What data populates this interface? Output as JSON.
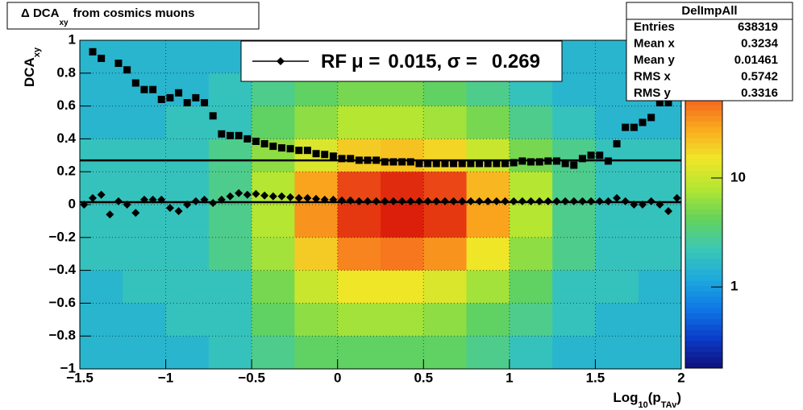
{
  "chart_data": {
    "type": "heatmap",
    "title": {
      "main": "Δ DCA",
      "sub": "xy",
      "rest": "from cosmics muons"
    },
    "x_label": {
      "main": "Log",
      "sub1": "10",
      "mid": "(p",
      "sub2": "TAv",
      "end": ")"
    },
    "y_label": {
      "main": "DCA",
      "sub": "xy"
    },
    "xlim": [
      -1.5,
      2
    ],
    "ylim": [
      -1,
      1
    ],
    "xticks": [
      {
        "value": -1.5,
        "label": "−1.5"
      },
      {
        "value": -1,
        "label": "−1"
      },
      {
        "value": -0.5,
        "label": "−0.5"
      },
      0,
      0.5,
      1,
      1.5,
      2
    ],
    "yticks": [
      {
        "value": -1,
        "label": "−1"
      },
      {
        "value": -0.8,
        "label": "−0.8"
      },
      {
        "value": -0.6,
        "label": "−0.6"
      },
      {
        "value": -0.4,
        "label": "−0.4"
      },
      {
        "value": -0.2,
        "label": "−0.2"
      },
      0,
      0.2,
      0.4,
      0.6,
      0.8,
      1
    ],
    "grid": true,
    "zlim": [
      0.18,
      190
    ],
    "zlog": true,
    "zticks": [
      1,
      10
    ],
    "palette": [
      "#10107a",
      "#0a3cc8",
      "#0f78e6",
      "#1eaadc",
      "#3cc8b4",
      "#64d25a",
      "#b4e632",
      "#f0e628",
      "#faaa1e",
      "#f5641e",
      "#dc1e0a",
      "#8c0a0a"
    ],
    "xbins": [
      -1.5,
      -1.25,
      -1,
      -0.75,
      -0.5,
      -0.25,
      0,
      0.25,
      0.5,
      0.75,
      1,
      1.25,
      1.5,
      1.75,
      2
    ],
    "ybins": [
      1,
      0.8,
      0.6,
      0.4,
      0.2,
      0,
      -0.2,
      -0.4,
      -0.6,
      -0.8,
      -1
    ],
    "z": [
      [
        1.5,
        1.5,
        1.5,
        1.5,
        2,
        3,
        3,
        3,
        3,
        2,
        2,
        1.5,
        1.5,
        1.5
      ],
      [
        1.5,
        1.5,
        1.5,
        2,
        3,
        4,
        5,
        5,
        4,
        3,
        2,
        1.5,
        1.5,
        1.5
      ],
      [
        1.5,
        1.5,
        2,
        2,
        4,
        6,
        8,
        8,
        7,
        5,
        3,
        2,
        1.5,
        1.5
      ],
      [
        2,
        2,
        2,
        3,
        6,
        12,
        20,
        22,
        18,
        10,
        5,
        3,
        2,
        2
      ],
      [
        2,
        2,
        2,
        3,
        8,
        30,
        70,
        90,
        70,
        25,
        8,
        3,
        2,
        2
      ],
      [
        2,
        2,
        2,
        3,
        8,
        35,
        80,
        100,
        80,
        30,
        8,
        3,
        2,
        2
      ],
      [
        2,
        2,
        2,
        3,
        7,
        20,
        40,
        45,
        35,
        15,
        6,
        3,
        2,
        2
      ],
      [
        1.5,
        2,
        2,
        2,
        5,
        10,
        15,
        15,
        12,
        7,
        4,
        2,
        2,
        1.5
      ],
      [
        1.5,
        1.5,
        2,
        2,
        4,
        6,
        7,
        7,
        6,
        4,
        3,
        2,
        1.5,
        1.5
      ],
      [
        1.5,
        1.5,
        1.5,
        2,
        3,
        4,
        4,
        4,
        4,
        3,
        2,
        1.5,
        1.5,
        1.5
      ]
    ],
    "x": [
      -1.475,
      -1.425,
      -1.375,
      -1.325,
      -1.275,
      -1.225,
      -1.175,
      -1.125,
      -1.075,
      -1.025,
      -0.975,
      -0.925,
      -0.875,
      -0.825,
      -0.775,
      -0.725,
      -0.675,
      -0.625,
      -0.575,
      -0.525,
      -0.475,
      -0.425,
      -0.375,
      -0.325,
      -0.275,
      -0.225,
      -0.175,
      -0.125,
      -0.075,
      -0.025,
      0.025,
      0.075,
      0.125,
      0.175,
      0.225,
      0.275,
      0.325,
      0.375,
      0.425,
      0.475,
      0.525,
      0.575,
      0.625,
      0.675,
      0.725,
      0.775,
      0.825,
      0.875,
      0.925,
      0.975,
      1.025,
      1.075,
      1.125,
      1.175,
      1.225,
      1.275,
      1.325,
      1.375,
      1.425,
      1.475,
      1.525,
      1.575,
      1.625,
      1.675,
      1.725,
      1.775,
      1.825,
      1.875,
      1.925,
      1.975
    ],
    "series": [
      {
        "marker": "square",
        "color": "#000000",
        "values": [
          null,
          0.93,
          0.89,
          null,
          0.86,
          0.82,
          0.74,
          0.7,
          0.7,
          0.64,
          0.65,
          0.68,
          0.62,
          0.65,
          0.62,
          0.54,
          0.43,
          0.42,
          0.42,
          0.4,
          0.385,
          0.37,
          0.355,
          0.345,
          0.34,
          0.33,
          0.33,
          0.31,
          0.305,
          0.295,
          0.28,
          0.28,
          0.27,
          0.27,
          0.27,
          0.26,
          0.26,
          0.26,
          0.26,
          0.25,
          0.25,
          0.25,
          0.25,
          0.25,
          0.25,
          0.25,
          0.25,
          0.25,
          0.25,
          0.25,
          0.255,
          0.265,
          0.26,
          0.26,
          0.265,
          0.265,
          0.25,
          0.24,
          0.28,
          0.3,
          0.3,
          0.265,
          0.37,
          0.47,
          0.47,
          0.5,
          0.53,
          0.62,
          0.62,
          0.74
        ]
      },
      {
        "marker": "diamond",
        "color": "#000000",
        "values": [
          0.0,
          0.04,
          0.06,
          -0.06,
          0.02,
          0.0,
          -0.05,
          0.03,
          0.03,
          0.03,
          -0.02,
          -0.04,
          0.0,
          0.02,
          0.03,
          0.01,
          0.03,
          0.05,
          0.07,
          0.06,
          0.065,
          0.055,
          0.05,
          0.05,
          0.045,
          0.04,
          0.04,
          0.035,
          0.03,
          0.03,
          0.025,
          0.025,
          0.02,
          0.02,
          0.02,
          0.02,
          0.02,
          0.02,
          0.02,
          0.02,
          0.02,
          0.02,
          0.02,
          0.02,
          0.02,
          0.02,
          0.02,
          0.02,
          0.02,
          0.02,
          0.02,
          0.02,
          0.02,
          0.02,
          0.02,
          0.02,
          0.02,
          0.02,
          0.02,
          0.02,
          0.02,
          0.02,
          0.04,
          0.02,
          0.0,
          0.0,
          0.02,
          0.0,
          -0.04,
          0.04
        ]
      }
    ],
    "fit": {
      "mu": 0.015,
      "sigma": 0.269
    },
    "legend": {
      "name": "RF",
      "mu_label": "μ =",
      "sigma_label": ", σ ="
    },
    "stats": {
      "name": "DelImpAll",
      "rows": [
        [
          "Entries",
          638319
        ],
        [
          "Mean x",
          0.3234
        ],
        [
          "Mean y",
          0.01461
        ],
        [
          "RMS x",
          0.5742
        ],
        [
          "RMS y",
          0.3316
        ]
      ]
    }
  }
}
